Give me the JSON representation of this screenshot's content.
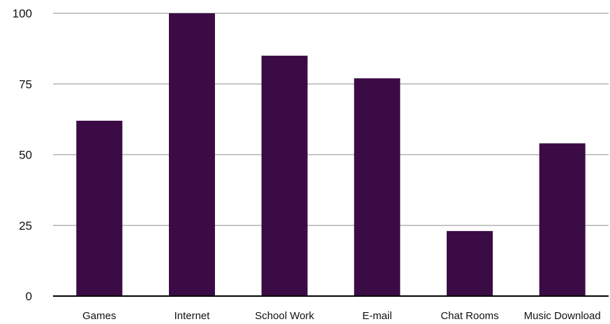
{
  "chart_data": {
    "type": "bar",
    "title": "",
    "xlabel": "",
    "ylabel": "",
    "categories": [
      "Games",
      "Internet",
      "School Work",
      "E-mail",
      "Chat Rooms",
      "Music Download"
    ],
    "values": [
      62,
      100,
      85,
      77,
      23,
      54
    ],
    "ylim": [
      0,
      100
    ],
    "yticks": [
      0,
      25,
      50,
      75,
      100
    ],
    "ytick_labels": [
      "0",
      "25",
      "50",
      "75",
      "100"
    ],
    "grid": true,
    "legend": "none",
    "colors": {
      "bar": "#3b0b45",
      "grid": "#b3b3b3",
      "axis": "#000000"
    }
  }
}
